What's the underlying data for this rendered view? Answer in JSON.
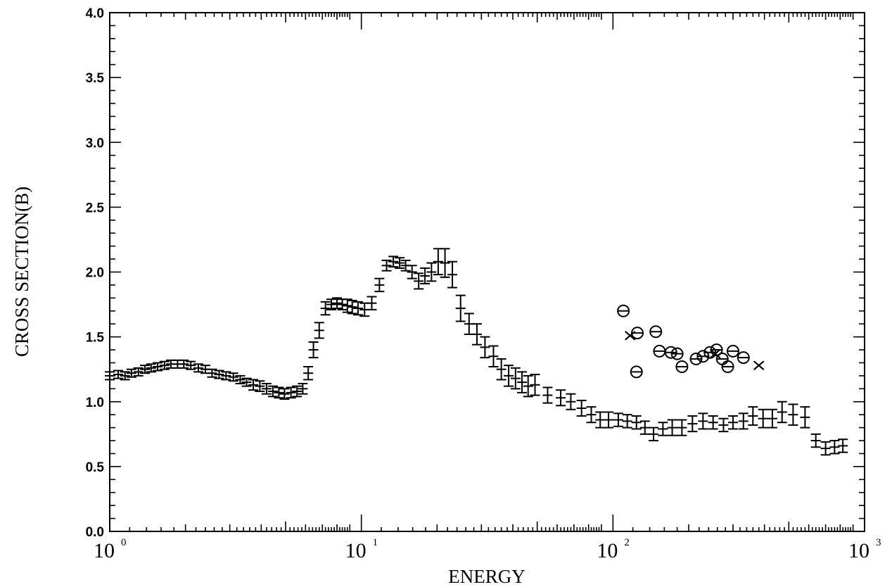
{
  "chart_data": {
    "type": "scatter",
    "title": "",
    "xlabel": "ENERGY",
    "ylabel": "CROSS SECTION(B)",
    "xscale": "log",
    "xlim": [
      1,
      1000
    ],
    "ylim": [
      0,
      4.0
    ],
    "grid": false,
    "legend": "none",
    "yticks": [
      "0.0",
      "0.5",
      "1.0",
      "1.5",
      "2.0",
      "2.5",
      "3.0",
      "3.5",
      "4.0"
    ],
    "xticks": [
      {
        "base": "10",
        "exp": "0"
      },
      {
        "base": "10",
        "exp": "1"
      },
      {
        "base": "10",
        "exp": "2"
      },
      {
        "base": "10",
        "exp": "3"
      }
    ],
    "series": [
      {
        "marker": "errorbar",
        "x": [
          1.0,
          1.08,
          1.15,
          1.22,
          1.3,
          1.38,
          1.46,
          1.55,
          1.65,
          1.75,
          1.86,
          1.97,
          2.1,
          2.25,
          2.4,
          2.55,
          2.72,
          2.9,
          3.1,
          3.3,
          3.5,
          3.72,
          3.95,
          4.2,
          4.45,
          4.7,
          4.95,
          5.25,
          5.55,
          5.85,
          6.15,
          6.45,
          6.8,
          7.2,
          7.6,
          8.0,
          8.4,
          8.8,
          9.2,
          9.7,
          10.3,
          11.0,
          11.8,
          12.6,
          13.4,
          14.2,
          15.0,
          15.9,
          16.9,
          17.9,
          19.0,
          20.2,
          21.5,
          23.0,
          24.8,
          26.8,
          28.8,
          31.0,
          33.5,
          36.0,
          38.5,
          41.0,
          43.5,
          46.0,
          49.0,
          55.0,
          62.0,
          68.0,
          75.0,
          82.0,
          89.0,
          96.0,
          105.0,
          114.0,
          124.0,
          134.0,
          145.0,
          158.0,
          172.0,
          188.0,
          207.0,
          228.0,
          250.0,
          275.0,
          300.0,
          330.0,
          360.0,
          395.0,
          430.0,
          470.0,
          520.0,
          580.0,
          640.0,
          700.0,
          760.0,
          820.0
        ],
        "y": [
          1.2,
          1.21,
          1.2,
          1.22,
          1.23,
          1.25,
          1.26,
          1.27,
          1.28,
          1.29,
          1.29,
          1.29,
          1.28,
          1.26,
          1.25,
          1.22,
          1.21,
          1.2,
          1.19,
          1.17,
          1.15,
          1.13,
          1.12,
          1.1,
          1.08,
          1.07,
          1.06,
          1.07,
          1.08,
          1.1,
          1.22,
          1.4,
          1.55,
          1.72,
          1.75,
          1.76,
          1.75,
          1.74,
          1.73,
          1.72,
          1.71,
          1.76,
          1.9,
          2.05,
          2.08,
          2.07,
          2.05,
          2.0,
          1.93,
          1.97,
          2.0,
          2.08,
          2.07,
          1.98,
          1.72,
          1.6,
          1.52,
          1.42,
          1.35,
          1.25,
          1.2,
          1.18,
          1.15,
          1.12,
          1.13,
          1.05,
          1.03,
          1.0,
          0.95,
          0.9,
          0.86,
          0.86,
          0.86,
          0.85,
          0.84,
          0.8,
          0.75,
          0.79,
          0.8,
          0.8,
          0.83,
          0.85,
          0.84,
          0.82,
          0.84,
          0.85,
          0.89,
          0.87,
          0.87,
          0.92,
          0.9,
          0.88,
          0.7,
          0.64,
          0.65,
          0.66
        ],
        "err": [
          0.03,
          0.03,
          0.03,
          0.03,
          0.03,
          0.03,
          0.03,
          0.03,
          0.03,
          0.03,
          0.03,
          0.03,
          0.03,
          0.03,
          0.03,
          0.03,
          0.03,
          0.03,
          0.03,
          0.03,
          0.03,
          0.04,
          0.04,
          0.04,
          0.04,
          0.04,
          0.04,
          0.04,
          0.04,
          0.04,
          0.05,
          0.06,
          0.06,
          0.05,
          0.04,
          0.04,
          0.04,
          0.05,
          0.05,
          0.05,
          0.05,
          0.05,
          0.05,
          0.04,
          0.04,
          0.04,
          0.04,
          0.05,
          0.06,
          0.06,
          0.07,
          0.1,
          0.11,
          0.1,
          0.1,
          0.08,
          0.08,
          0.08,
          0.08,
          0.08,
          0.08,
          0.08,
          0.08,
          0.08,
          0.08,
          0.06,
          0.06,
          0.06,
          0.06,
          0.06,
          0.06,
          0.06,
          0.05,
          0.05,
          0.05,
          0.05,
          0.05,
          0.05,
          0.06,
          0.06,
          0.06,
          0.06,
          0.05,
          0.05,
          0.05,
          0.06,
          0.07,
          0.07,
          0.07,
          0.08,
          0.08,
          0.08,
          0.05,
          0.05,
          0.05,
          0.05
        ]
      },
      {
        "marker": "circle",
        "x": [
          110.0,
          125.0,
          124.0,
          148.0,
          153.0,
          170.0,
          180.0,
          188.0,
          214.0,
          228.0,
          243.0,
          258.0,
          272.0,
          286.0,
          300.0,
          330.0
        ],
        "y": [
          1.7,
          1.53,
          1.23,
          1.54,
          1.39,
          1.38,
          1.37,
          1.27,
          1.33,
          1.35,
          1.38,
          1.4,
          1.33,
          1.27,
          1.39,
          1.34
        ]
      },
      {
        "marker": "cross",
        "x": [
          117.0,
          255.0,
          380.0
        ],
        "y": [
          1.51,
          1.37,
          1.28
        ]
      }
    ]
  }
}
